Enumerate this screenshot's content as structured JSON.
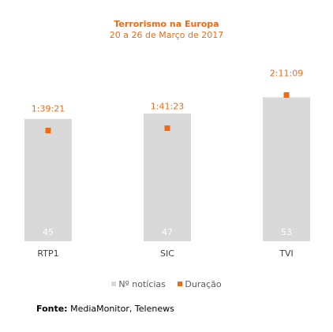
{
  "chart_data": {
    "type": "bar",
    "title": "Terrorismo na Europa",
    "subtitle": "20 a 26 de Março de 2017",
    "categories": [
      "RTP1",
      "SIC",
      "TVI"
    ],
    "series": [
      {
        "name": "Nº notícias",
        "type": "bar",
        "values": [
          45,
          47,
          53
        ],
        "labels": [
          "45",
          "47",
          "53"
        ]
      },
      {
        "name": "Duração",
        "type": "point",
        "values_seconds": [
          5961,
          6083,
          7869
        ],
        "labels": [
          "1:39:21",
          "1:41:23",
          "2:11:09"
        ]
      }
    ],
    "bar_ylim": [
      0,
      65
    ],
    "point_ylim": [
      0,
      9500
    ],
    "legend_position": "bottom",
    "grid": false
  },
  "source": {
    "label": "Fonte:",
    "text": "MediaMonitor, Telenews"
  },
  "colors": {
    "bar": "#d9d9d9",
    "point": "#f06a14",
    "title": "#f06a14",
    "axis_text": "#404040",
    "bar_label": "#ffffff"
  }
}
